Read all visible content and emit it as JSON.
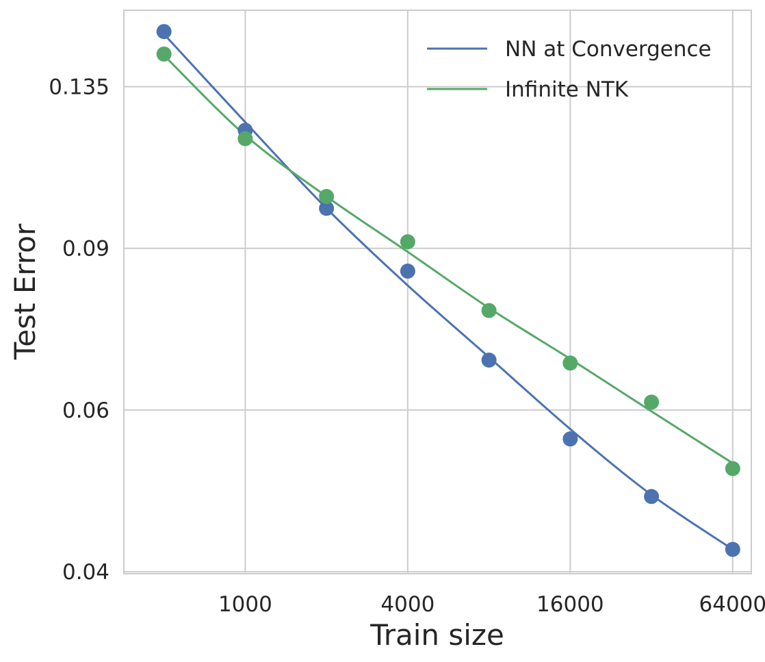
{
  "chart_data": {
    "type": "line",
    "xlabel": "Train size",
    "ylabel": "Test Error",
    "xscale": "log2",
    "yscale": "log",
    "xlim": [
      355,
      75000
    ],
    "ylim": [
      0.0398,
      0.1635
    ],
    "xticks": [
      1000,
      4000,
      16000,
      64000
    ],
    "xtick_labels": [
      "1000",
      "4000",
      "16000",
      "64000"
    ],
    "yticks": [
      0.04,
      0.06,
      0.09,
      0.135
    ],
    "ytick_labels": [
      "0.04",
      "0.06",
      "0.09",
      "0.135"
    ],
    "grid": true,
    "legend_position": "top-right",
    "x": [
      500,
      1000,
      2000,
      4000,
      8000,
      16000,
      32000,
      64000
    ],
    "series": [
      {
        "name": "NN at Convergence",
        "color": "#4c72b0",
        "points": [
          0.155,
          0.121,
          0.0995,
          0.085,
          0.068,
          0.0558,
          0.0483,
          0.0423
        ],
        "fit": [
          0.154,
          0.1235,
          0.0995,
          0.082,
          0.0685,
          0.0572,
          0.0485,
          0.0423
        ]
      },
      {
        "name": "Infinite NTK",
        "color": "#55a868",
        "points": [
          0.1465,
          0.1185,
          0.1025,
          0.0915,
          0.077,
          0.0675,
          0.0612,
          0.0518
        ],
        "fit": [
          0.146,
          0.1195,
          0.1025,
          0.0892,
          0.0775,
          0.0682,
          0.0598,
          0.0525
        ]
      }
    ]
  }
}
